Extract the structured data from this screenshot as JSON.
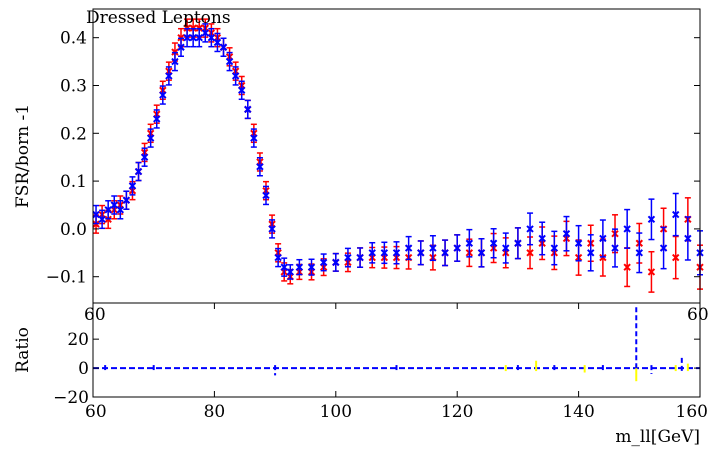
{
  "chart_data": [
    {
      "type": "scatter",
      "title": "Dressed Leptons",
      "xlabel": "",
      "ylabel": "FSR/born -1",
      "xlim": [
        60,
        160
      ],
      "ylim": [
        -0.155,
        0.46
      ],
      "yticks": [
        -0.1,
        0.0,
        0.1,
        0.2,
        0.3,
        0.4
      ],
      "ytick_labels": [
        "−0.1",
        "0.0",
        "0.1",
        "0.2",
        "0.3",
        "0.4"
      ],
      "grid": false,
      "series": [
        {
          "color": "#ff0000",
          "marker": "x",
          "points": [
            [
              60.5,
              0.01
            ],
            [
              61.5,
              0.03
            ],
            [
              62.5,
              0.02
            ],
            [
              63.5,
              0.04
            ],
            [
              64.5,
              0.05
            ],
            [
              65.5,
              0.06
            ],
            [
              66.5,
              0.08
            ],
            [
              67.5,
              0.12
            ],
            [
              68.5,
              0.16
            ],
            [
              69.5,
              0.2
            ],
            [
              70.5,
              0.24
            ],
            [
              71.5,
              0.29
            ],
            [
              72.5,
              0.33
            ],
            [
              73.5,
              0.37
            ],
            [
              74.5,
              0.4
            ],
            [
              75.5,
              0.42
            ],
            [
              76.5,
              0.42
            ],
            [
              77.5,
              0.42
            ],
            [
              78.5,
              0.42
            ],
            [
              79.5,
              0.41
            ],
            [
              80.5,
              0.4
            ],
            [
              81.5,
              0.38
            ],
            [
              82.5,
              0.36
            ],
            [
              83.5,
              0.33
            ],
            [
              84.5,
              0.3
            ],
            [
              85.5,
              0.25
            ],
            [
              86.5,
              0.2
            ],
            [
              87.5,
              0.14
            ],
            [
              88.5,
              0.08
            ],
            [
              89.5,
              0.01
            ],
            [
              90.5,
              -0.05
            ],
            [
              91.5,
              -0.09
            ],
            [
              92.5,
              -0.1
            ],
            [
              94,
              -0.09
            ],
            [
              96,
              -0.09
            ],
            [
              98,
              -0.08
            ],
            [
              100,
              -0.07
            ],
            [
              102,
              -0.07
            ],
            [
              104,
              -0.06
            ],
            [
              106,
              -0.06
            ],
            [
              108,
              -0.06
            ],
            [
              110,
              -0.06
            ],
            [
              112,
              -0.06
            ],
            [
              114,
              -0.05
            ],
            [
              116,
              -0.06
            ],
            [
              118,
              -0.05
            ],
            [
              120,
              -0.04
            ],
            [
              122,
              -0.05
            ],
            [
              124,
              -0.05
            ],
            [
              126,
              -0.04
            ],
            [
              128,
              -0.05
            ],
            [
              130,
              -0.03
            ],
            [
              132,
              -0.05
            ],
            [
              134,
              -0.03
            ],
            [
              136,
              -0.05
            ],
            [
              138,
              -0.02
            ],
            [
              140,
              -0.06
            ],
            [
              142,
              -0.03
            ],
            [
              144,
              -0.06
            ],
            [
              146,
              -0.01
            ],
            [
              148,
              -0.08
            ],
            [
              150,
              -0.03
            ],
            [
              152,
              -0.09
            ],
            [
              154,
              0.0
            ],
            [
              156,
              -0.06
            ],
            [
              158,
              0.02
            ],
            [
              160,
              -0.08
            ]
          ]
        },
        {
          "color": "#0000ff",
          "marker": "x",
          "points": [
            [
              60.5,
              0.03
            ],
            [
              61.5,
              0.02
            ],
            [
              62.5,
              0.04
            ],
            [
              63.5,
              0.05
            ],
            [
              64.5,
              0.04
            ],
            [
              65.5,
              0.06
            ],
            [
              66.5,
              0.09
            ],
            [
              67.5,
              0.12
            ],
            [
              68.5,
              0.15
            ],
            [
              69.5,
              0.19
            ],
            [
              70.5,
              0.23
            ],
            [
              71.5,
              0.28
            ],
            [
              72.5,
              0.32
            ],
            [
              73.5,
              0.35
            ],
            [
              74.5,
              0.38
            ],
            [
              75.5,
              0.4
            ],
            [
              76.5,
              0.4
            ],
            [
              77.5,
              0.4
            ],
            [
              78.5,
              0.41
            ],
            [
              79.5,
              0.4
            ],
            [
              80.5,
              0.39
            ],
            [
              81.5,
              0.38
            ],
            [
              82.5,
              0.35
            ],
            [
              83.5,
              0.32
            ],
            [
              84.5,
              0.29
            ],
            [
              85.5,
              0.25
            ],
            [
              86.5,
              0.19
            ],
            [
              87.5,
              0.13
            ],
            [
              88.5,
              0.07
            ],
            [
              89.5,
              0.0
            ],
            [
              90.5,
              -0.06
            ],
            [
              91.5,
              -0.08
            ],
            [
              92.5,
              -0.09
            ],
            [
              94,
              -0.08
            ],
            [
              96,
              -0.08
            ],
            [
              98,
              -0.07
            ],
            [
              100,
              -0.07
            ],
            [
              102,
              -0.06
            ],
            [
              104,
              -0.06
            ],
            [
              106,
              -0.05
            ],
            [
              108,
              -0.05
            ],
            [
              110,
              -0.05
            ],
            [
              112,
              -0.04
            ],
            [
              114,
              -0.05
            ],
            [
              116,
              -0.04
            ],
            [
              118,
              -0.05
            ],
            [
              120,
              -0.04
            ],
            [
              122,
              -0.03
            ],
            [
              124,
              -0.05
            ],
            [
              126,
              -0.03
            ],
            [
              128,
              -0.04
            ],
            [
              130,
              -0.03
            ],
            [
              132,
              0.0
            ],
            [
              134,
              -0.02
            ],
            [
              136,
              -0.04
            ],
            [
              138,
              -0.01
            ],
            [
              140,
              -0.03
            ],
            [
              142,
              -0.05
            ],
            [
              144,
              -0.02
            ],
            [
              146,
              -0.04
            ],
            [
              148,
              0.0
            ],
            [
              150,
              -0.05
            ],
            [
              152,
              0.02
            ],
            [
              154,
              -0.04
            ],
            [
              156,
              0.03
            ],
            [
              158,
              -0.02
            ],
            [
              160,
              -0.05
            ]
          ]
        }
      ]
    },
    {
      "type": "scatter",
      "title": "",
      "xlabel": "m_ll[GeV]",
      "ylabel": "Ratio",
      "xlim": [
        60,
        160
      ],
      "ylim": [
        -20,
        45
      ],
      "xticks": [
        60,
        80,
        100,
        120,
        140,
        160
      ],
      "xtick_labels": [
        "60",
        "80",
        "100",
        "120",
        "140",
        "160"
      ],
      "yticks": [
        -20,
        0,
        20
      ],
      "ytick_labels": [
        "−20",
        "0",
        "20"
      ],
      "overlap_tick_labels": [
        "60",
        "60"
      ],
      "grid": false,
      "series": [
        {
          "color": "#ffff00",
          "points": [
            [
              128,
              0
            ],
            [
              133,
              3
            ],
            [
              141,
              -1
            ],
            [
              149.5,
              -7
            ],
            [
              156,
              0
            ],
            [
              158,
              1
            ]
          ]
        },
        {
          "color": "#0000ff",
          "points": [
            [
              62,
              0
            ],
            [
              70,
              0
            ],
            [
              90,
              -3
            ],
            [
              110,
              0
            ],
            [
              130,
              0
            ],
            [
              136,
              0
            ],
            [
              144,
              -1
            ],
            [
              149.5,
              40
            ],
            [
              152,
              -2
            ],
            [
              157,
              5
            ]
          ]
        }
      ]
    }
  ]
}
